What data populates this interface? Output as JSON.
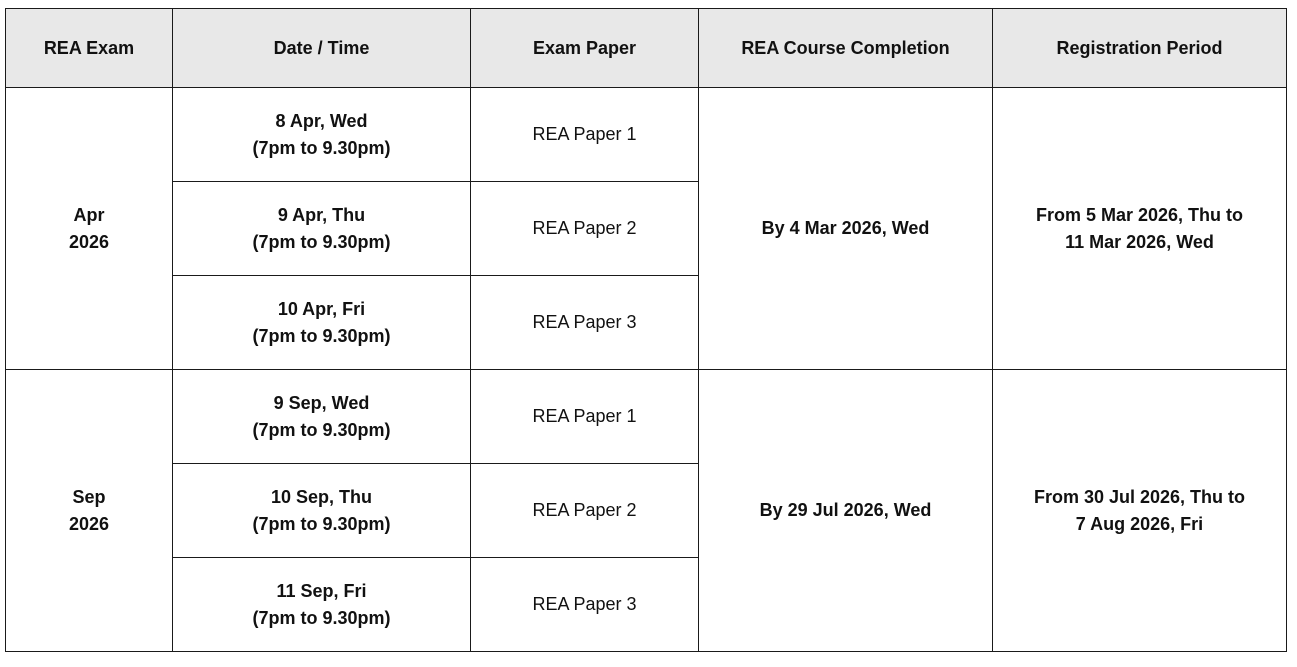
{
  "headers": [
    "REA Exam",
    "Date / Time",
    "Exam Paper",
    "REA Course Completion",
    "Registration Period"
  ],
  "sessions": [
    {
      "exam_line1": "Apr",
      "exam_line2": "2026",
      "rows": [
        {
          "date": "8 Apr, Wed",
          "time": "(7pm to 9.30pm)",
          "paper": "REA Paper 1"
        },
        {
          "date": "9 Apr, Thu",
          "time": "(7pm to 9.30pm)",
          "paper": "REA Paper 2"
        },
        {
          "date": "10 Apr, Fri",
          "time": "(7pm to 9.30pm)",
          "paper": "REA Paper 3"
        }
      ],
      "completion": "By 4 Mar 2026, Wed",
      "registration_line1": "From 5 Mar 2026, Thu to",
      "registration_line2": "11 Mar 2026, Wed"
    },
    {
      "exam_line1": "Sep",
      "exam_line2": "2026",
      "rows": [
        {
          "date": "9 Sep, Wed",
          "time": "(7pm to 9.30pm)",
          "paper": "REA Paper 1"
        },
        {
          "date": "10 Sep, Thu",
          "time": "(7pm to 9.30pm)",
          "paper": "REA Paper 2"
        },
        {
          "date": "11 Sep, Fri",
          "time": "(7pm to 9.30pm)",
          "paper": "REA Paper 3"
        }
      ],
      "completion": "By 29 Jul 2026, Wed",
      "registration_line1": "From 30 Jul 2026, Thu to",
      "registration_line2": "7 Aug 2026, Fri"
    }
  ]
}
